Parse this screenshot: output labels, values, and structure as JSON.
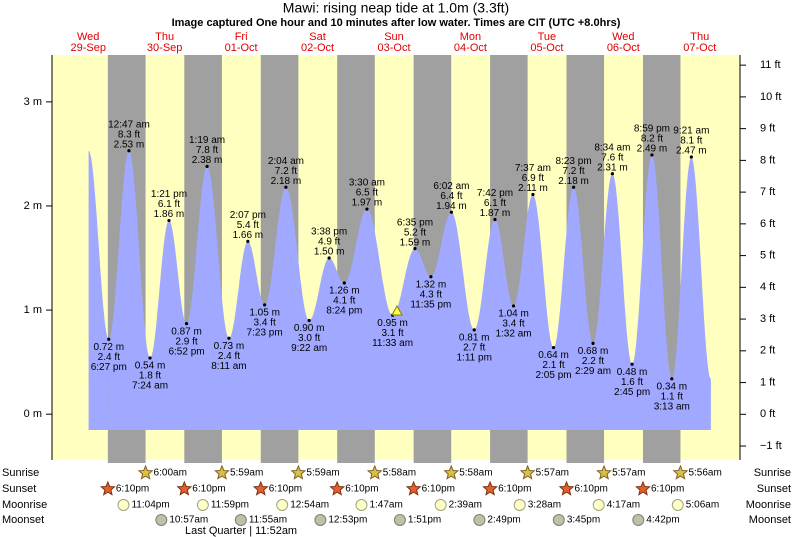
{
  "chart_data": {
    "type": "tide",
    "title": "Mawi: rising  neap tide at 1.0m (3.3ft)",
    "subtitle": "Image captured One hour and 10 minutes after low water. Times are CIT (UTC +8.0hrs)",
    "days": {
      "weekdays": [
        "Wed",
        "Thu",
        "Fri",
        "Sat",
        "Sun",
        "Mon",
        "Tue",
        "Wed",
        "Thu"
      ],
      "dates": [
        "29-Sep",
        "30-Sep",
        "01-Oct",
        "02-Oct",
        "03-Oct",
        "04-Oct",
        "05-Oct",
        "06-Oct",
        "07-Oct"
      ]
    },
    "ylim": [
      -0.44,
      3.45
    ],
    "yticks": [
      {
        "value": 0,
        "label": "0 m"
      },
      {
        "value": 1,
        "label": "1 m"
      },
      {
        "value": 2,
        "label": "2 m"
      },
      {
        "value": 3,
        "label": "3 m"
      }
    ],
    "y2lim": [
      -1.44,
      11.32
    ],
    "y2ticks": [
      {
        "value": -1,
        "label": "−1 ft"
      },
      {
        "value": 0,
        "label": "0 ft"
      },
      {
        "value": 1,
        "label": "1 ft"
      },
      {
        "value": 2,
        "label": "2 ft"
      },
      {
        "value": 3,
        "label": "3 ft"
      },
      {
        "value": 4,
        "label": "4 ft"
      },
      {
        "value": 5,
        "label": "5 ft"
      },
      {
        "value": 6,
        "label": "6 ft"
      },
      {
        "value": 7,
        "label": "7 ft"
      },
      {
        "value": 8,
        "label": "8 ft"
      },
      {
        "value": 9,
        "label": "9 ft"
      },
      {
        "value": 10,
        "label": "10 ft"
      },
      {
        "value": 11,
        "label": "11 ft"
      }
    ],
    "color": "#a0a8ff",
    "tides": {
      "times": [
        "6:27 pm",
        "12:47 am",
        "7:24 am",
        "1:21 pm",
        "6:52 pm",
        "1:19 am",
        "8:11 am",
        "2:07 pm",
        "7:23 pm",
        "2:04 am",
        "9:22 am",
        "3:38 pm",
        "8:24 pm",
        "3:30 am",
        "11:33 am",
        "6:35 pm",
        "11:35 pm",
        "6:02 am",
        "1:11 pm",
        "7:42 pm",
        "1:32 am",
        "7:37 am",
        "2:05 pm",
        "8:23 pm",
        "2:29 am",
        "8:34 am",
        "2:45 pm",
        "8:59 pm",
        "3:13 am",
        "9:21 am"
      ],
      "values": [
        0.72,
        2.53,
        0.54,
        1.86,
        0.87,
        2.38,
        0.73,
        1.66,
        1.05,
        2.18,
        0.9,
        1.5,
        1.26,
        1.97,
        0.95,
        1.59,
        1.32,
        1.94,
        0.81,
        1.87,
        1.04,
        2.11,
        0.64,
        2.18,
        0.68,
        2.31,
        0.48,
        2.49,
        0.34,
        2.47
      ],
      "value_labels": [
        "0.72 m",
        "2.53 m",
        "0.54 m",
        "1.86 m",
        "0.87 m",
        "2.38 m",
        "0.73 m",
        "1.66 m",
        "1.05 m",
        "2.18 m",
        "0.90 m",
        "1.50 m",
        "1.26 m",
        "1.97 m",
        "0.95 m",
        "1.59 m",
        "1.32 m",
        "1.94 m",
        "0.81 m",
        "1.87 m",
        "1.04 m",
        "2.11 m",
        "0.64 m",
        "2.18 m",
        "0.68 m",
        "2.31 m",
        "0.48 m",
        "2.49 m",
        "0.34 m",
        "2.47 m"
      ],
      "values_ft": [
        2.4,
        8.3,
        1.8,
        6.1,
        2.9,
        7.8,
        2.4,
        5.4,
        3.4,
        7.2,
        3.0,
        4.9,
        4.1,
        6.5,
        3.1,
        5.2,
        4.3,
        6.4,
        2.7,
        6.1,
        3.4,
        6.9,
        2.1,
        7.2,
        2.2,
        7.6,
        1.6,
        8.2,
        1.1,
        8.1
      ],
      "value_labels_ft": [
        "2.4 ft",
        "8.3 ft",
        "1.8 ft",
        "6.1 ft",
        "2.9 ft",
        "7.8 ft",
        "2.4 ft",
        "5.4 ft",
        "3.4 ft",
        "7.2 ft",
        "3.0 ft",
        "4.9 ft",
        "4.1 ft",
        "6.5 ft",
        "3.1 ft",
        "5.2 ft",
        "4.3 ft",
        "6.4 ft",
        "2.7 ft",
        "6.1 ft",
        "3.4 ft",
        "6.9 ft",
        "2.1 ft",
        "7.2 ft",
        "2.2 ft",
        "7.6 ft",
        "1.6 ft",
        "8.2 ft",
        "1.1 ft",
        "8.1 ft"
      ]
    },
    "almanac": {
      "labels": [
        "Sunrise",
        "Sunset",
        "Moonrise",
        "Moonset"
      ],
      "times": [
        [
          null,
          "6:00am",
          "5:59am",
          "5:59am",
          "5:58am",
          "5:58am",
          "5:57am",
          "5:57am",
          "5:56am"
        ],
        [
          "6:10pm",
          "6:10pm",
          "6:10pm",
          "6:10pm",
          "6:10pm",
          "6:10pm",
          "6:10pm",
          "6:10pm",
          null
        ],
        [
          "11:04pm",
          "11:59pm",
          null,
          "12:54am",
          "1:47am",
          "2:39am",
          "3:28am",
          "4:17am",
          "5:06am"
        ],
        [
          null,
          "10:57am",
          "11:55am",
          "12:53pm",
          "1:51pm",
          "2:49pm",
          "3:45pm",
          "4:42pm",
          null
        ]
      ],
      "moon_phase": "Last Quarter | 11:52am"
    }
  }
}
